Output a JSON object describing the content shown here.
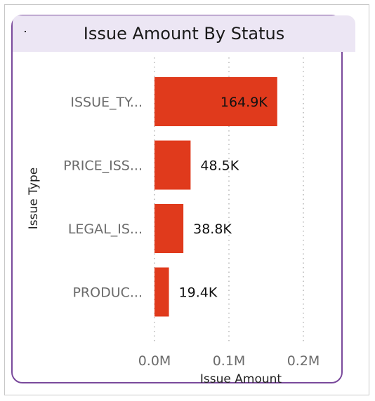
{
  "title": "Issue Amount By Status",
  "chart_data": {
    "type": "bar",
    "orientation": "horizontal",
    "title": "Issue Amount By Status",
    "xlabel": "Issue Amount",
    "ylabel": "Issue Type",
    "categories": [
      "ISSUE_TY...",
      "PRICE_ISS...",
      "LEGAL_IS...",
      "PRODUC..."
    ],
    "values": [
      164900,
      48500,
      38800,
      19400
    ],
    "data_labels": [
      "164.9K",
      "48.5K",
      "38.8K",
      "19.4K"
    ],
    "x_ticks": [
      0,
      100000,
      200000
    ],
    "x_tick_labels": [
      "0.0M",
      "0.1M",
      "0.2M"
    ],
    "xlim": [
      0,
      200000
    ],
    "grid": "vertical dotted",
    "bar_color": "#e03a1c"
  }
}
